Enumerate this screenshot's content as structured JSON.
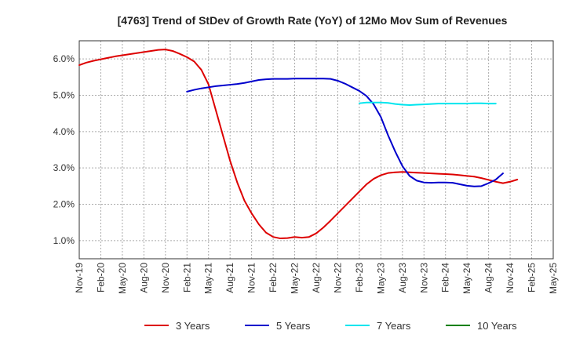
{
  "chart_data": {
    "type": "line",
    "title": "[4763]  Trend of StDev of Growth Rate (YoY) of 12Mo Mov Sum of Revenues",
    "xlabel": "",
    "ylabel": "",
    "ylim": [
      0.5,
      6.5
    ],
    "yticks": [
      1.0,
      2.0,
      3.0,
      4.0,
      5.0,
      6.0
    ],
    "ytick_labels": [
      "1.0%",
      "2.0%",
      "3.0%",
      "4.0%",
      "5.0%",
      "6.0%"
    ],
    "grid": true,
    "legend_position": "bottom",
    "x_tick_labels": [
      "Nov-19",
      "Feb-20",
      "May-20",
      "Aug-20",
      "Nov-20",
      "Feb-21",
      "May-21",
      "Aug-21",
      "Nov-21",
      "Feb-22",
      "May-22",
      "Aug-22",
      "Nov-22",
      "Feb-23",
      "May-23",
      "Aug-23",
      "Nov-23",
      "Feb-24",
      "May-24",
      "Aug-24",
      "Nov-24",
      "Feb-25",
      "May-25"
    ],
    "x_months_start": "2019-11",
    "x_month_count": 67,
    "series": [
      {
        "name": "3 Years",
        "color": "#dd0000",
        "start_index": 0,
        "values": [
          5.83,
          5.9,
          5.95,
          5.99,
          6.03,
          6.07,
          6.1,
          6.13,
          6.16,
          6.19,
          6.22,
          6.25,
          6.26,
          6.22,
          6.14,
          6.05,
          5.93,
          5.7,
          5.3,
          4.6,
          3.9,
          3.2,
          2.6,
          2.1,
          1.75,
          1.45,
          1.22,
          1.1,
          1.06,
          1.07,
          1.1,
          1.08,
          1.1,
          1.2,
          1.36,
          1.55,
          1.75,
          1.95,
          2.15,
          2.35,
          2.55,
          2.7,
          2.8,
          2.86,
          2.88,
          2.89,
          2.88,
          2.87,
          2.86,
          2.85,
          2.84,
          2.83,
          2.82,
          2.8,
          2.78,
          2.76,
          2.72,
          2.67,
          2.62,
          2.58,
          2.62,
          2.68
        ]
      },
      {
        "name": "5 Years",
        "color": "#0000cc",
        "start_index": 15,
        "values": [
          5.1,
          5.15,
          5.19,
          5.22,
          5.25,
          5.27,
          5.29,
          5.31,
          5.34,
          5.38,
          5.42,
          5.44,
          5.45,
          5.45,
          5.45,
          5.46,
          5.46,
          5.46,
          5.46,
          5.46,
          5.45,
          5.4,
          5.32,
          5.22,
          5.12,
          4.98,
          4.75,
          4.4,
          3.9,
          3.45,
          3.05,
          2.78,
          2.65,
          2.6,
          2.59,
          2.6,
          2.6,
          2.59,
          2.55,
          2.51,
          2.49,
          2.5,
          2.58,
          2.68,
          2.85
        ]
      },
      {
        "name": "7 Years",
        "color": "#00e5ee",
        "start_index": 39,
        "values": [
          4.78,
          4.8,
          4.8,
          4.8,
          4.79,
          4.76,
          4.74,
          4.73,
          4.74,
          4.75,
          4.76,
          4.77,
          4.77,
          4.77,
          4.77,
          4.77,
          4.78,
          4.78,
          4.77,
          4.77
        ]
      },
      {
        "name": "10 Years",
        "color": "#008000",
        "start_index": 0,
        "values": []
      }
    ]
  }
}
